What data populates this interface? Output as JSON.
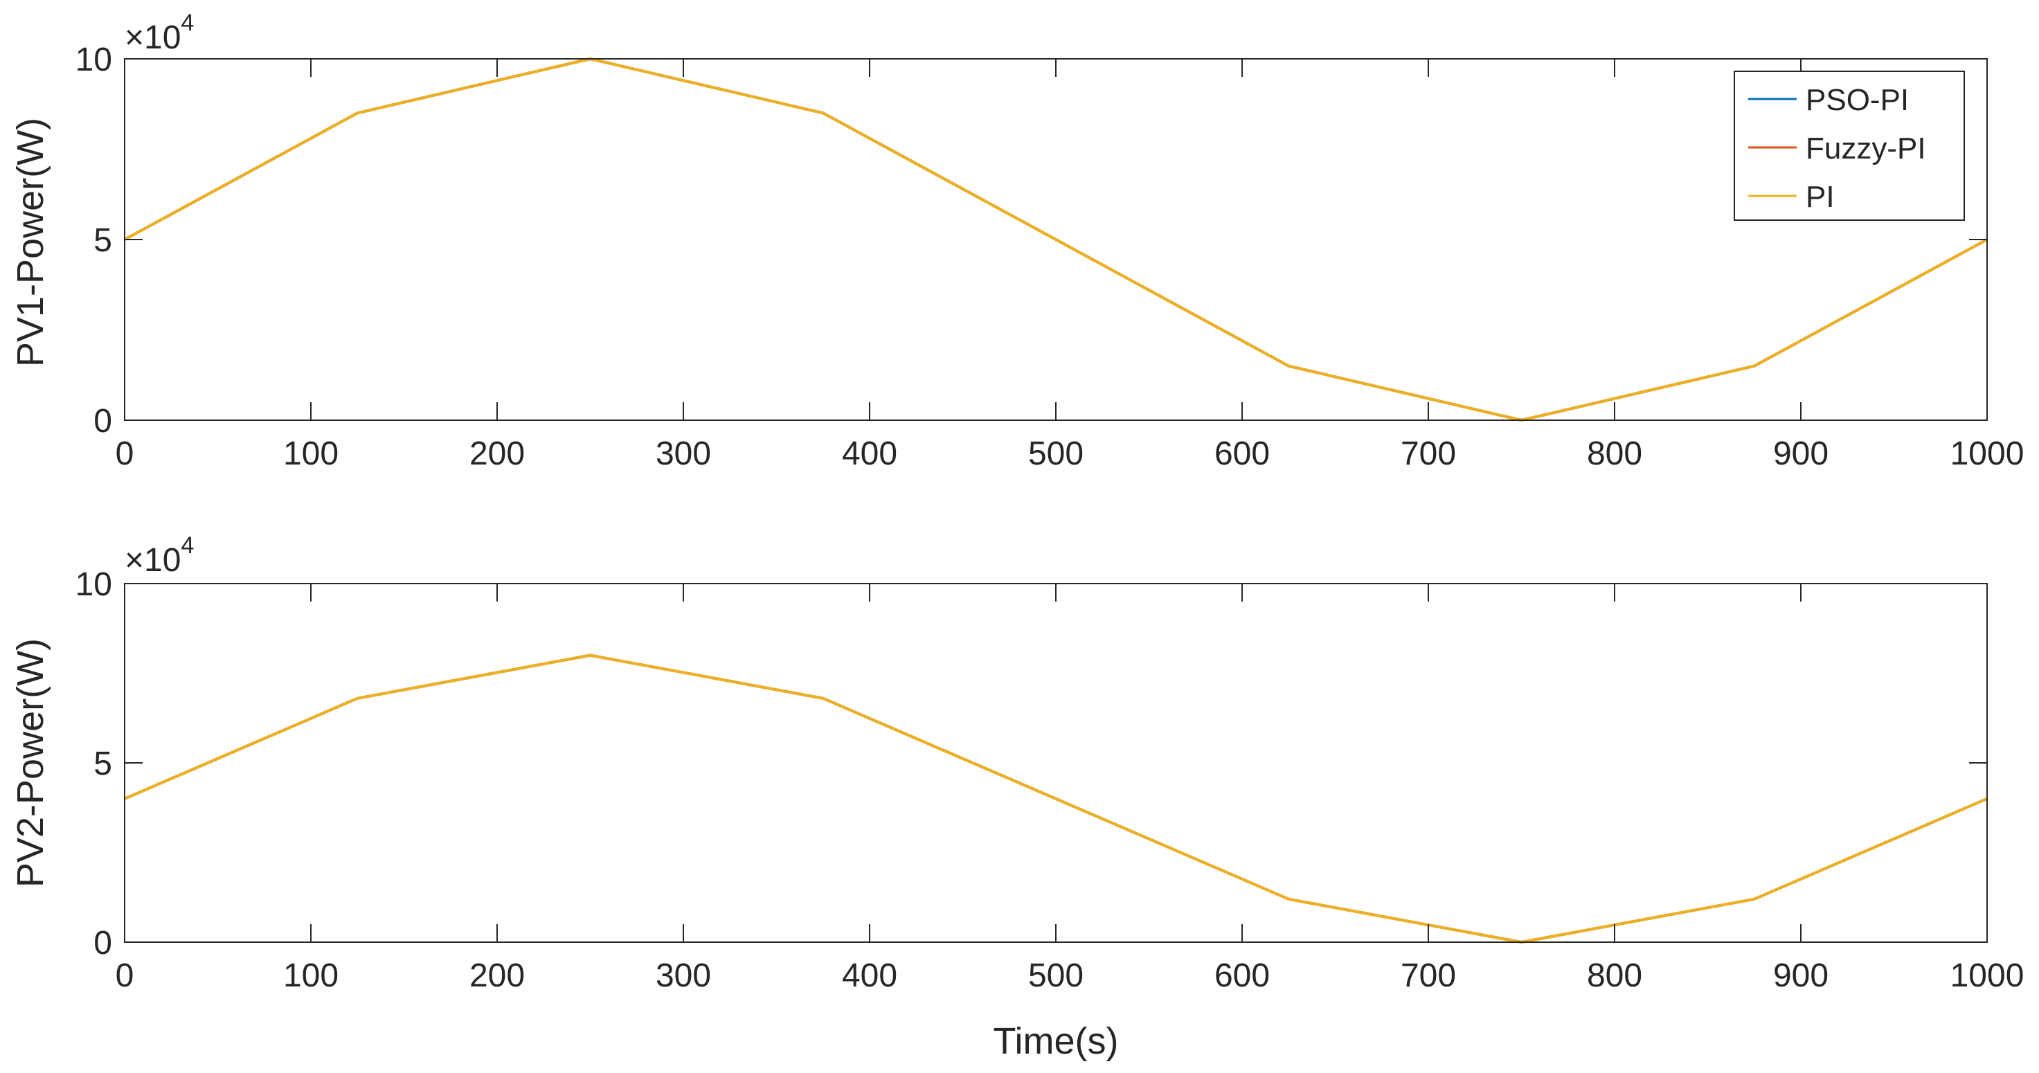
{
  "chart_data": [
    {
      "type": "line",
      "ylabel": "PV1-Power(W)",
      "xlabel": "",
      "y_exponent_base": "×10",
      "y_exponent_power": "4",
      "xlim": [
        0,
        1000
      ],
      "ylim": [
        0,
        100000
      ],
      "x_ticks": [
        0,
        100,
        200,
        300,
        400,
        500,
        600,
        700,
        800,
        900,
        1000
      ],
      "y_ticks": [
        0,
        50000,
        100000
      ],
      "y_tick_labels": [
        "0",
        "5",
        "10"
      ],
      "grid": false,
      "legend_position": "top-right",
      "x": [
        0,
        125,
        250,
        375,
        500,
        625,
        750,
        875,
        1000
      ],
      "series": [
        {
          "name": "PSO-PI",
          "color": "#0072BD",
          "values": [
            50000,
            85000,
            100000,
            85000,
            50000,
            15000,
            0,
            15000,
            50000
          ]
        },
        {
          "name": "Fuzzy-PI",
          "color": "#D95319",
          "values": [
            50000,
            85000,
            100000,
            85000,
            50000,
            15000,
            0,
            15000,
            50000
          ]
        },
        {
          "name": "PI",
          "color": "#EDB120",
          "values": [
            50000,
            85000,
            100000,
            85000,
            50000,
            15000,
            0,
            15000,
            50000
          ]
        }
      ]
    },
    {
      "type": "line",
      "ylabel": "PV2-Power(W)",
      "xlabel": "Time(s)",
      "y_exponent_base": "×10",
      "y_exponent_power": "4",
      "xlim": [
        0,
        1000
      ],
      "ylim": [
        0,
        100000
      ],
      "x_ticks": [
        0,
        100,
        200,
        300,
        400,
        500,
        600,
        700,
        800,
        900,
        1000
      ],
      "y_ticks": [
        0,
        50000,
        100000
      ],
      "y_tick_labels": [
        "0",
        "5",
        "10"
      ],
      "grid": false,
      "x": [
        0,
        125,
        250,
        375,
        500,
        625,
        750,
        875,
        1000
      ],
      "series": [
        {
          "name": "PSO-PI",
          "color": "#0072BD",
          "values": [
            40000,
            68000,
            80000,
            68000,
            40000,
            12000,
            0,
            12000,
            40000
          ]
        },
        {
          "name": "Fuzzy-PI",
          "color": "#D95319",
          "values": [
            40000,
            68000,
            80000,
            68000,
            40000,
            12000,
            0,
            12000,
            40000
          ]
        },
        {
          "name": "PI",
          "color": "#EDB120",
          "values": [
            40000,
            68000,
            80000,
            68000,
            40000,
            12000,
            0,
            12000,
            40000
          ]
        }
      ]
    }
  ]
}
